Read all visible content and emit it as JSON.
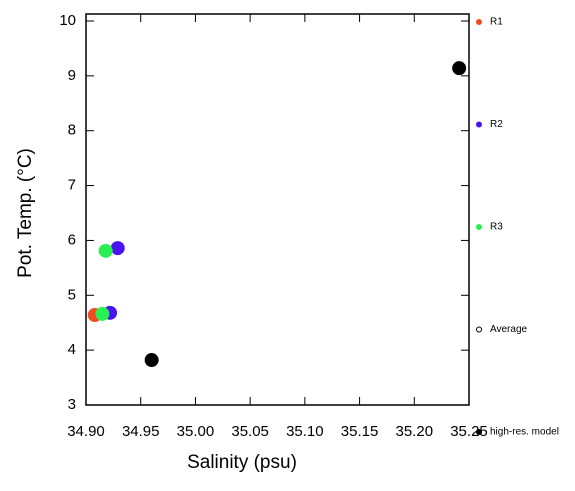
{
  "chart_data": {
    "type": "scatter",
    "x_label": "Salinity (psu)",
    "y_label": "Pot. Temp. (°C)",
    "xlim": [
      34.9,
      35.25
    ],
    "ylim": [
      3,
      10
    ],
    "xticks": [
      {
        "value": 34.9,
        "label": "34.90"
      },
      {
        "value": 34.95,
        "label": "34.95"
      },
      {
        "value": 35.0,
        "label": "35.00"
      },
      {
        "value": 35.05,
        "label": "35.05"
      },
      {
        "value": 35.1,
        "label": "35.10"
      },
      {
        "value": 35.15,
        "label": "35.15"
      },
      {
        "value": 35.2,
        "label": "35.20"
      },
      {
        "value": 35.25,
        "label": "35.25"
      }
    ],
    "yticks": [
      3,
      4,
      5,
      6,
      7,
      8,
      9,
      10
    ],
    "series": [
      {
        "name": "R1",
        "color": "#f04a1e",
        "marker": "filled",
        "x": [
          34.908
        ],
        "values": [
          4.64
        ]
      },
      {
        "name": "R2",
        "color": "#4a14f0",
        "marker": "filled",
        "x": [
          34.922,
          34.929
        ],
        "values": [
          4.68,
          5.86
        ]
      },
      {
        "name": "R3",
        "color": "#28f050",
        "marker": "filled",
        "x": [
          34.915,
          34.918
        ],
        "values": [
          4.66,
          5.81
        ]
      },
      {
        "name": "Average",
        "color": "#000000",
        "marker": "hollow",
        "x": [],
        "values": []
      },
      {
        "name": "high-res. model",
        "color": "#000000",
        "marker": "filled",
        "x": [
          35.241,
          34.96
        ],
        "values": [
          9.14,
          3.82
        ]
      }
    ]
  }
}
